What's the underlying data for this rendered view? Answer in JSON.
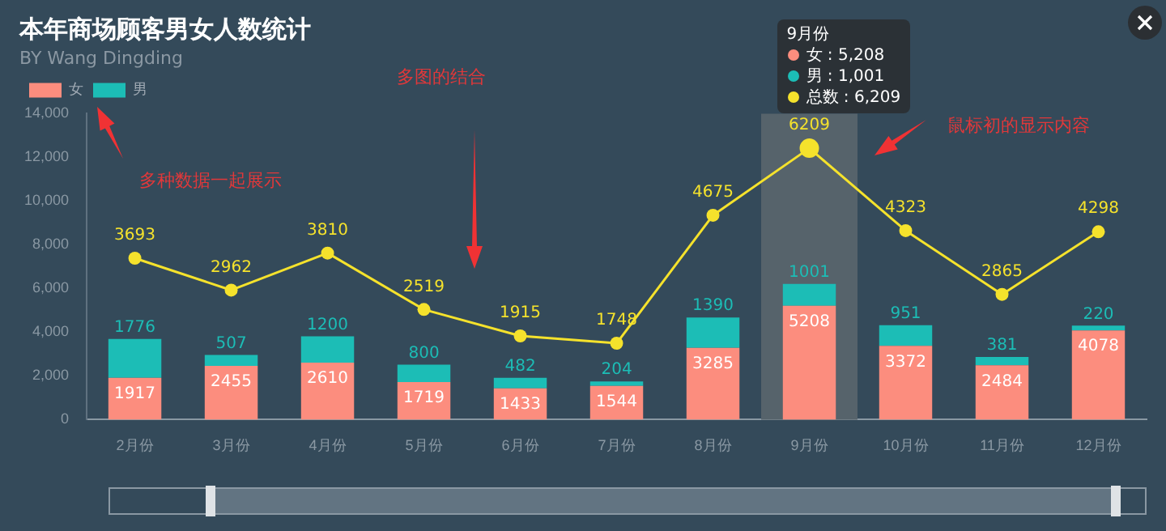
{
  "chart_data": {
    "type": "bar",
    "title": "本年商场顾客男女人数统计",
    "subtitle": "BY Wang Dingding",
    "categories": [
      "2月份",
      "3月份",
      "4月份",
      "5月份",
      "6月份",
      "7月份",
      "8月份",
      "9月份",
      "10月份",
      "11月份",
      "12月份"
    ],
    "stacked": true,
    "data_labels": true,
    "legend": "top left",
    "marker": "circle",
    "series": [
      {
        "name": "女",
        "color": "#fc8d7e",
        "values": [
          1917,
          2455,
          2610,
          1719,
          1433,
          1544,
          3285,
          5208,
          3372,
          2484,
          4078
        ]
      },
      {
        "name": "男",
        "color": "#1cbdb6",
        "values": [
          1776,
          507,
          1200,
          800,
          482,
          204,
          1390,
          1001,
          951,
          381,
          220
        ]
      },
      {
        "type": "line",
        "axis": "y2",
        "color": "#f5e22c",
        "values": [
          3693,
          2962,
          3810,
          2519,
          1915,
          1748,
          4675,
          6209,
          4323,
          2865,
          4298
        ]
      }
    ],
    "ylim": [
      0,
      14000
    ],
    "yticks": [
      0,
      {
        "value": 2000,
        "label": "2,000"
      },
      {
        "value": 4000,
        "label": "4,000"
      },
      {
        "value": 6000,
        "label": "6,000"
      },
      {
        "value": 8000,
        "label": "8,000"
      },
      {
        "value": 10000,
        "label": "10,000"
      },
      {
        "value": 12000,
        "label": "12,000"
      },
      {
        "value": 14000,
        "label": "14,000"
      }
    ],
    "y2lim": [
      0,
      7000
    ],
    "bands": [
      {
        "axis": "x",
        "from": "9月份",
        "to": "9月份",
        "color": "#56636b"
      }
    ],
    "annotations": [
      "多种数据一起展示",
      "多图的结合",
      "鼠标初的显示内容",
      "女 : 5,208",
      "男 : 1,001",
      "总数 : 6,209"
    ]
  }
}
